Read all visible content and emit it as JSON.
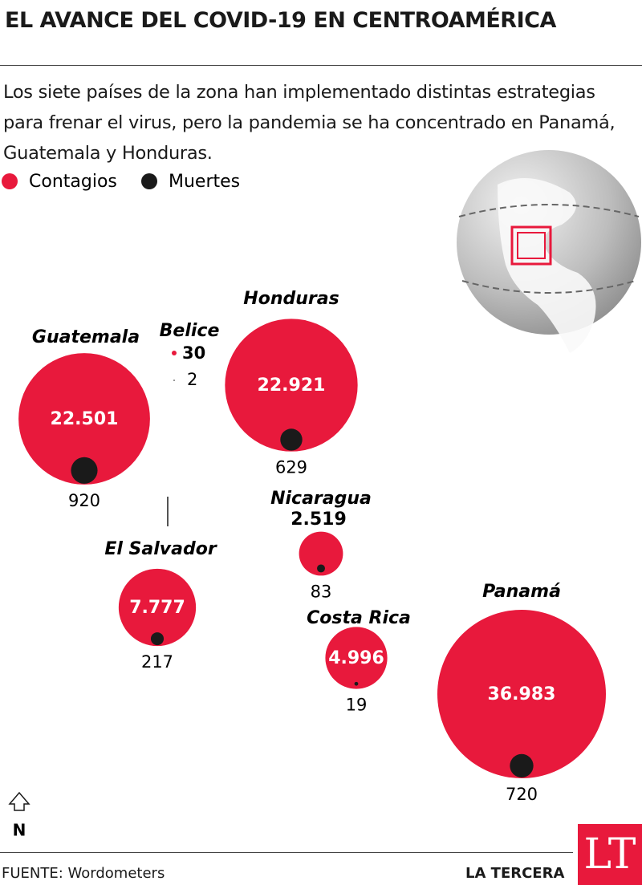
{
  "chart_data": {
    "type": "bubble",
    "title": "EL AVANCE DEL COVID-19 EN CENTROAMÉRICA",
    "subtitle": "Los siete países de la zona han implementado distintas estrategias para frenar el virus, pero la pandemia se ha concentrado en Panamá, Guatemala y Honduras.",
    "categories": [
      "Guatemala",
      "Belice",
      "Honduras",
      "El Salvador",
      "Nicaragua",
      "Costa Rica",
      "Panamá"
    ],
    "series": [
      {
        "name": "Contagios",
        "color": "#e8193c",
        "values": [
          22501,
          30,
          22921,
          7777,
          2519,
          4996,
          36983
        ],
        "value_labels": [
          "22.501",
          "30",
          "22.921",
          "7.777",
          "2.519",
          "4.996",
          "36.983"
        ]
      },
      {
        "name": "Muertes",
        "color": "#1a1a1a",
        "values": [
          920,
          2,
          629,
          217,
          83,
          19,
          720
        ]
      }
    ],
    "north_label": "N",
    "source": "FUENTE: Wordometers",
    "brand": "LA TERCERA",
    "logo": "LT"
  }
}
